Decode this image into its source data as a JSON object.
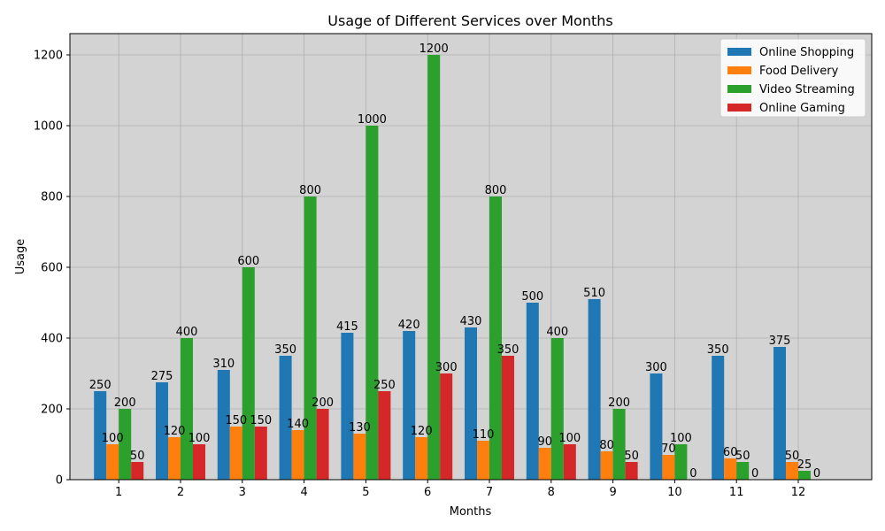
{
  "chart_data": {
    "type": "bar",
    "title": "Usage of Different Services over Months",
    "xlabel": "Months",
    "ylabel": "Usage",
    "categories": [
      "1",
      "2",
      "3",
      "4",
      "5",
      "6",
      "7",
      "8",
      "9",
      "10",
      "11",
      "12"
    ],
    "series": [
      {
        "name": "Online Shopping",
        "color": "#1f77b4",
        "values": [
          250,
          275,
          310,
          350,
          415,
          420,
          430,
          500,
          510,
          300,
          350,
          375
        ]
      },
      {
        "name": "Food Delivery",
        "color": "#ff7f0e",
        "values": [
          100,
          120,
          150,
          140,
          130,
          120,
          110,
          90,
          80,
          70,
          60,
          50
        ]
      },
      {
        "name": "Video Streaming",
        "color": "#2ca02c",
        "values": [
          200,
          400,
          600,
          800,
          1000,
          1200,
          800,
          400,
          200,
          100,
          50,
          25
        ]
      },
      {
        "name": "Online Gaming",
        "color": "#d62728",
        "values": [
          50,
          100,
          150,
          200,
          250,
          300,
          350,
          100,
          50,
          0,
          0,
          0
        ]
      }
    ],
    "yticks": [
      0,
      200,
      400,
      600,
      800,
      1000,
      1200
    ],
    "ylim": [
      0,
      1260
    ],
    "grid": true,
    "legend_position": "top-right",
    "plot_background": "#d3d3d3"
  }
}
